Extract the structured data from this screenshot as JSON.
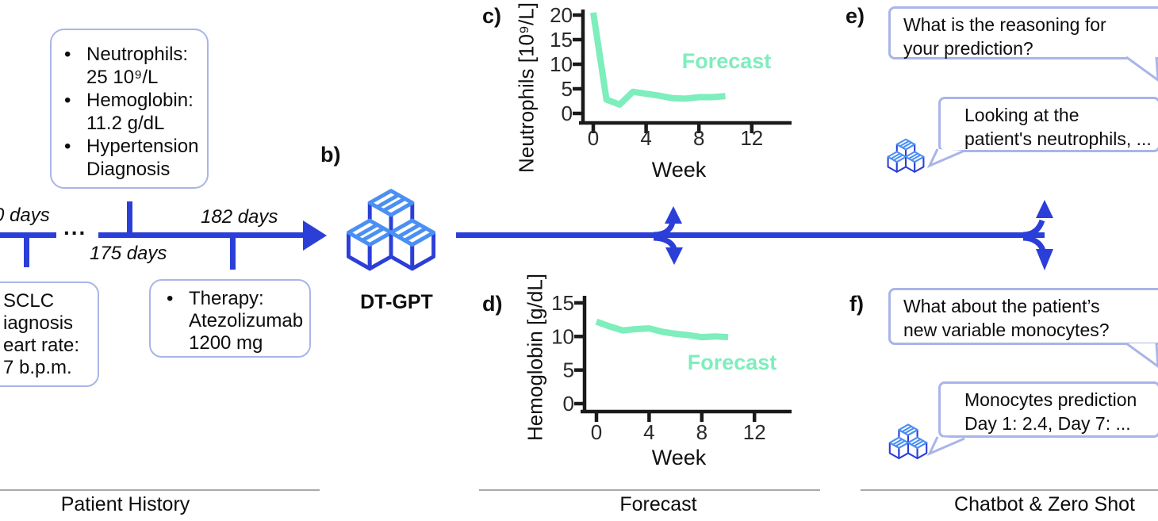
{
  "figure": {
    "panel_b_label": "b)",
    "panel_c_label": "c)",
    "panel_d_label": "d)",
    "panel_e_label": "e)",
    "panel_f_label": "f)",
    "model_name": "DT-GPT"
  },
  "glyphs": {
    "bullet": "•",
    "timeline_dots": "..."
  },
  "history": {
    "events_box_lines": [
      "Neutrophils:",
      "25 10⁹/L",
      "Hemoglobin:",
      "11.2 g/dL",
      "Hypertension",
      "Diagnosis"
    ],
    "left_box_lines": [
      "SCLC",
      "iagnosis",
      "eart rate:",
      "7 b.p.m."
    ],
    "therapy_box_lines": [
      "Therapy:",
      "Atezolizumab",
      "1200 mg"
    ],
    "timeline": {
      "start_label": "0 days",
      "mid_label": "175 days",
      "end_label": "182 days"
    }
  },
  "chart_data": [
    {
      "id": "chart-c",
      "type": "line",
      "x": [
        0,
        1,
        2,
        3,
        4,
        5,
        6,
        7,
        8,
        9,
        10
      ],
      "values": [
        20.5,
        2.8,
        1.8,
        4.4,
        4.0,
        3.6,
        3.1,
        3.0,
        3.3,
        3.3,
        3.5
      ],
      "xlabel": "Week",
      "ylabel": "Neutrophils [10⁹/L]",
      "x_ticks": [
        0,
        4,
        8,
        12
      ],
      "y_ticks": [
        0,
        5,
        10,
        15,
        20
      ],
      "xlim": [
        0,
        14.8
      ],
      "ylim": [
        0,
        21.5
      ],
      "annotation": "Forecast",
      "line_color": "#7deebc",
      "grid": false,
      "legend": "none"
    },
    {
      "id": "chart-d",
      "type": "line",
      "x": [
        0,
        1,
        2,
        3,
        4,
        5,
        6,
        7,
        8,
        9,
        10
      ],
      "values": [
        12.2,
        11.5,
        10.9,
        11.1,
        11.2,
        10.7,
        10.4,
        10.2,
        9.9,
        10.0,
        9.9
      ],
      "xlabel": "Week",
      "ylabel": "Hemoglobin [g/dL]",
      "x_ticks": [
        0,
        4,
        8,
        12
      ],
      "y_ticks": [
        0,
        5,
        10,
        15
      ],
      "xlim": [
        0,
        14.8
      ],
      "ylim": [
        0,
        16.5
      ],
      "annotation": "Forecast",
      "line_color": "#7deebc",
      "grid": false,
      "legend": "none"
    }
  ],
  "chat": {
    "e": {
      "question_lines": [
        "What is the reasoning for",
        "your prediction?"
      ],
      "answer_lines": [
        "Looking at the",
        "patient's neutrophils, ..."
      ]
    },
    "f": {
      "question_lines": [
        "What about the patient’s",
        "new variable monocytes?"
      ],
      "answer_lines": [
        "Monocytes prediction",
        "Day 1: 2.4, Day 7: ..."
      ]
    }
  },
  "footer": {
    "patient_history": "Patient History",
    "forecast": "Forecast",
    "chatbot": "Chatbot & Zero Shot"
  },
  "colors": {
    "primary_blue": "#2b3fd8",
    "cube_light_blue": "#4a90f4",
    "box_border": "#a9b5e8",
    "forecast_mint": "#7deebc",
    "axis_black": "#1a1a1a",
    "footer_line_gray": "#a9a9a9"
  }
}
